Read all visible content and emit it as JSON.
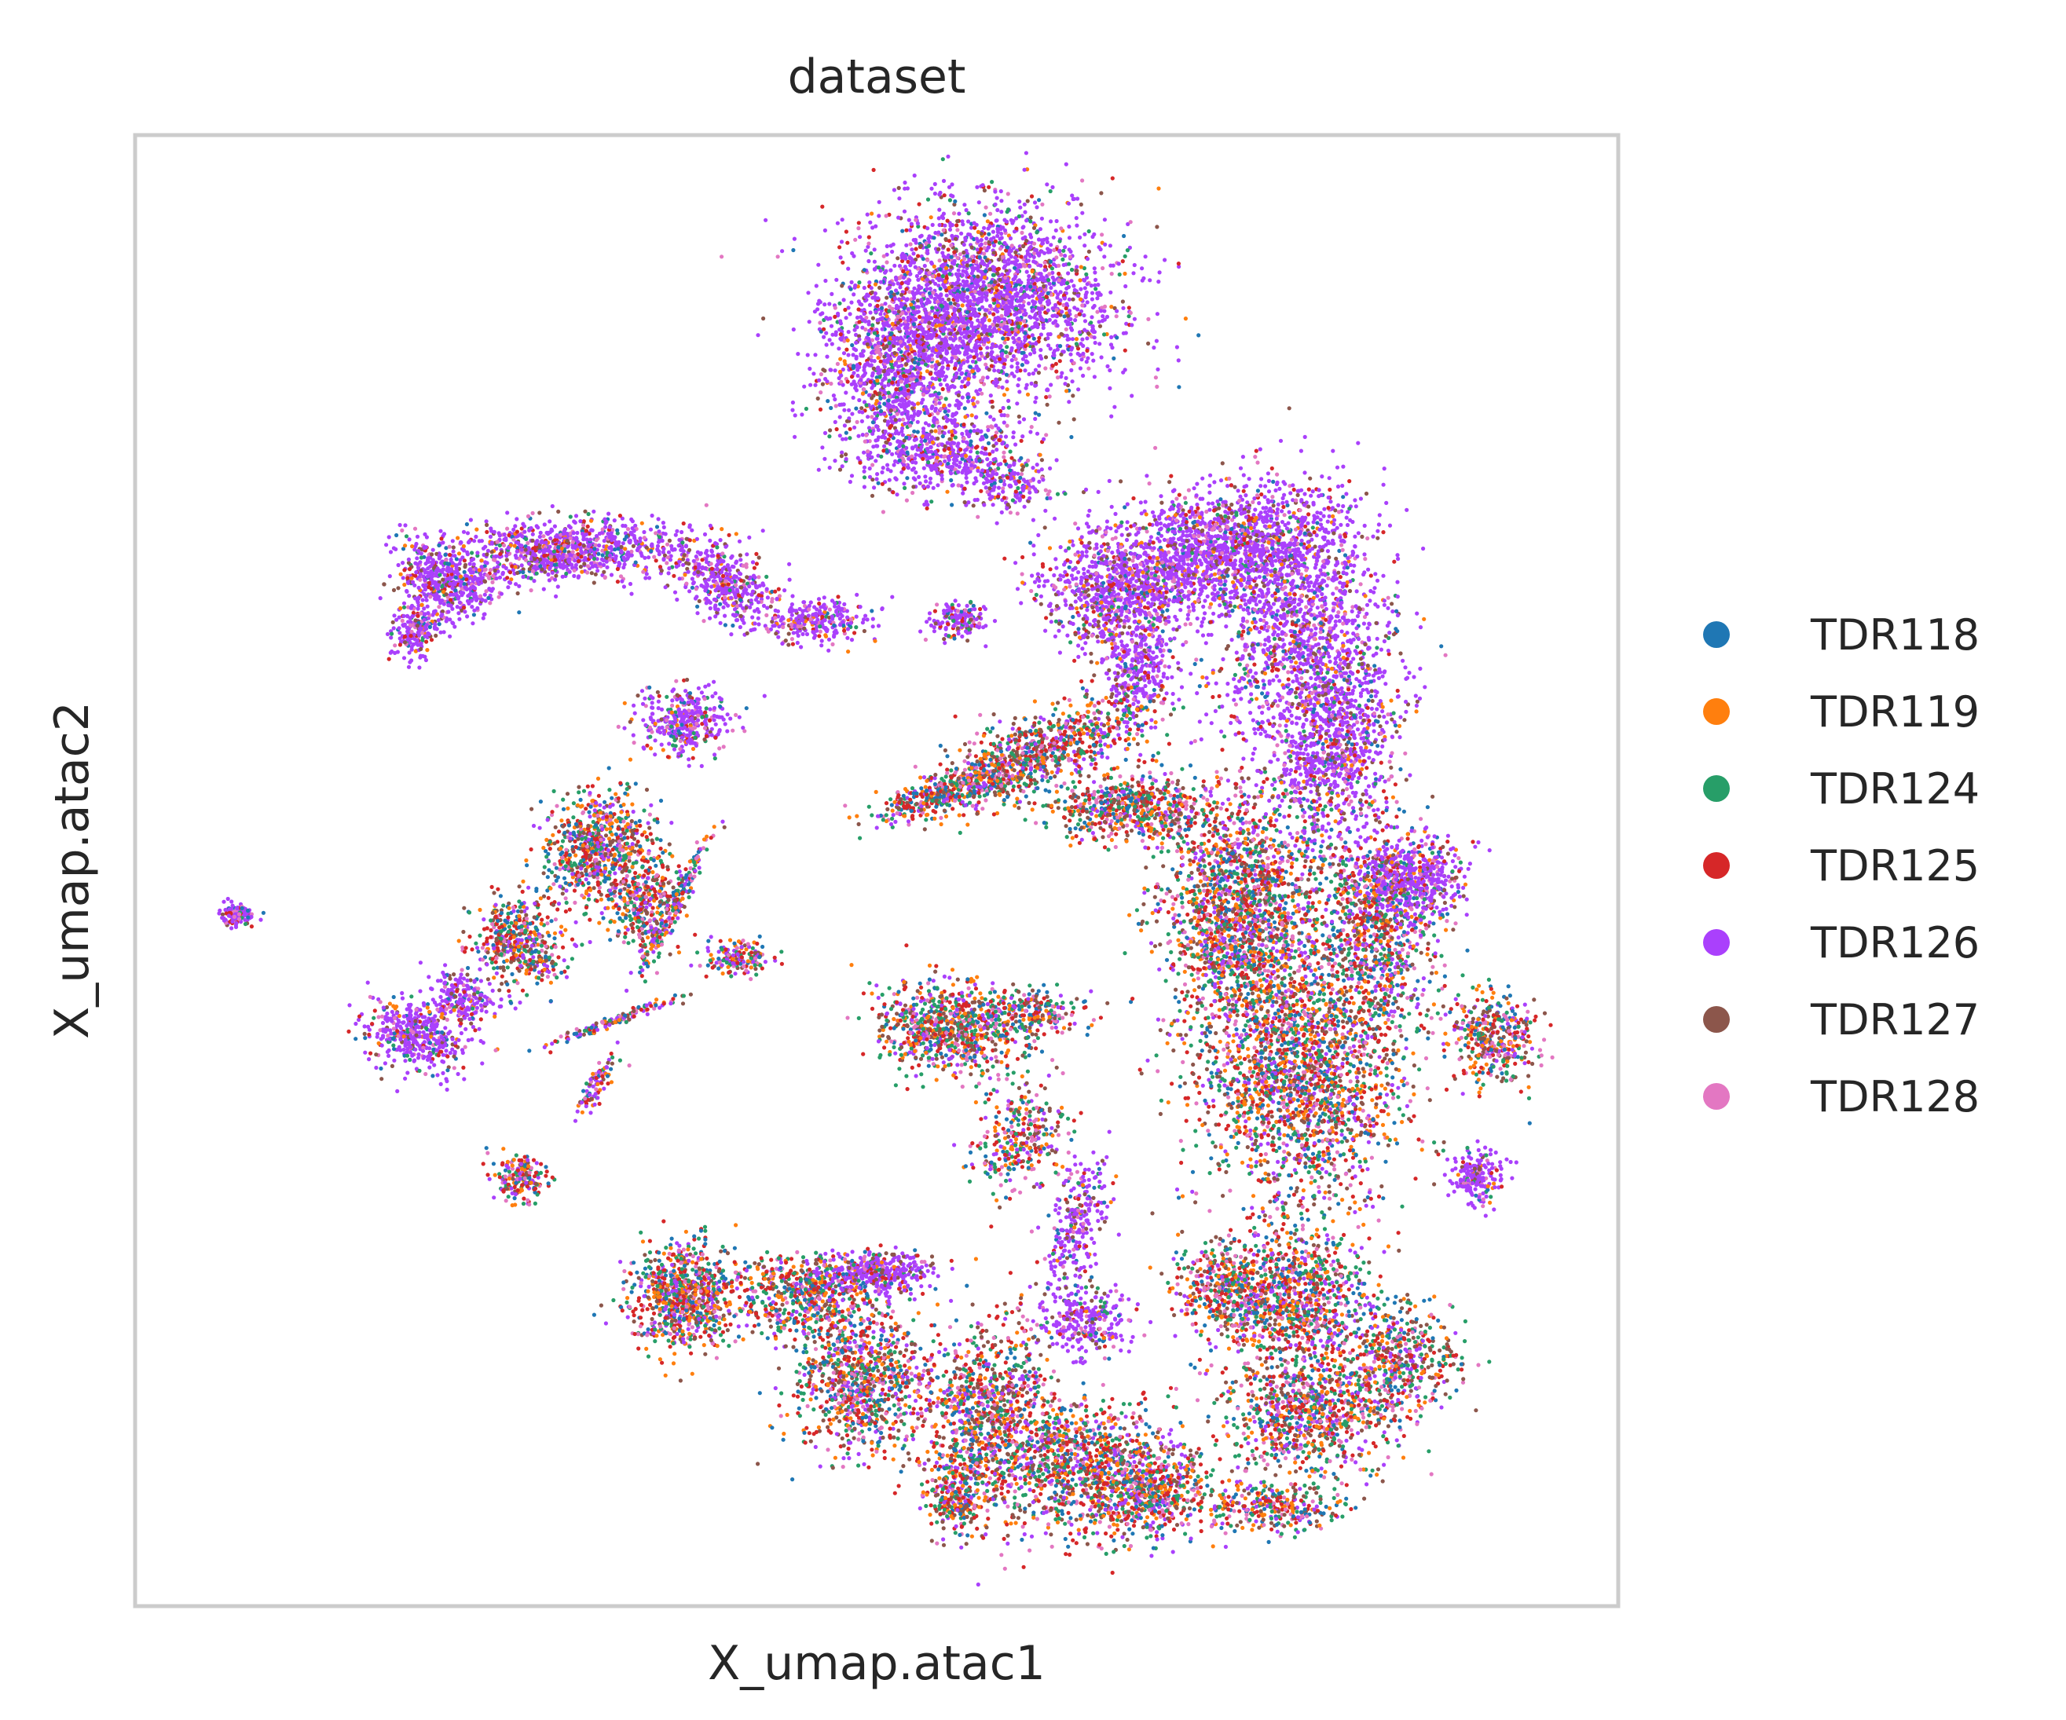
{
  "chart_data": {
    "type": "scatter",
    "title": "dataset",
    "xlabel": "X_umap.atac1",
    "ylabel": "X_umap.atac2",
    "grid": false,
    "x_ticks": "none",
    "y_ticks": "none",
    "legend": {
      "placement": "right-outside",
      "marker": "circle"
    },
    "xlim": [
      0,
      10
    ],
    "ylim": [
      0,
      10
    ],
    "series": [
      {
        "name": "TDR118",
        "color": "#1f77b4"
      },
      {
        "name": "TDR119",
        "color": "#ff7f0e"
      },
      {
        "name": "TDR124",
        "color": "#279e68"
      },
      {
        "name": "TDR125",
        "color": "#d62728"
      },
      {
        "name": "TDR126",
        "color": "#aa40fc"
      },
      {
        "name": "TDR127",
        "color": "#8c564b"
      },
      {
        "name": "TDR128",
        "color": "#e377c2"
      }
    ]
  }
}
